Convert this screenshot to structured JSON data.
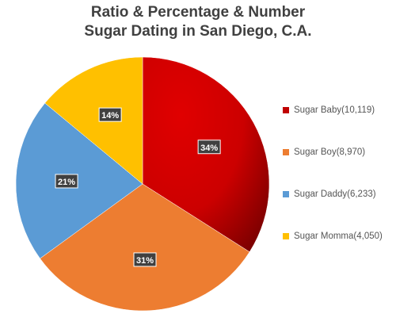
{
  "chart_data": {
    "type": "pie",
    "title_lines": [
      "Ratio & Percentage & Number",
      "Sugar Dating in San Diego, C.A."
    ],
    "slices": [
      {
        "legend": "Sugar Baby(10,119)",
        "label": "34%",
        "value": 34,
        "color": "#c00000"
      },
      {
        "legend": "Sugar Boy(8,970)",
        "label": "31%",
        "value": 31,
        "color": "#ed7d31"
      },
      {
        "legend": "Sugar Daddy(6,233)",
        "label": "21%",
        "value": 21,
        "color": "#5b9bd5"
      },
      {
        "legend": "Sugar Momma(4,050)",
        "label": "14%",
        "value": 14,
        "color": "#ffc000"
      }
    ],
    "legend_position": "right"
  }
}
